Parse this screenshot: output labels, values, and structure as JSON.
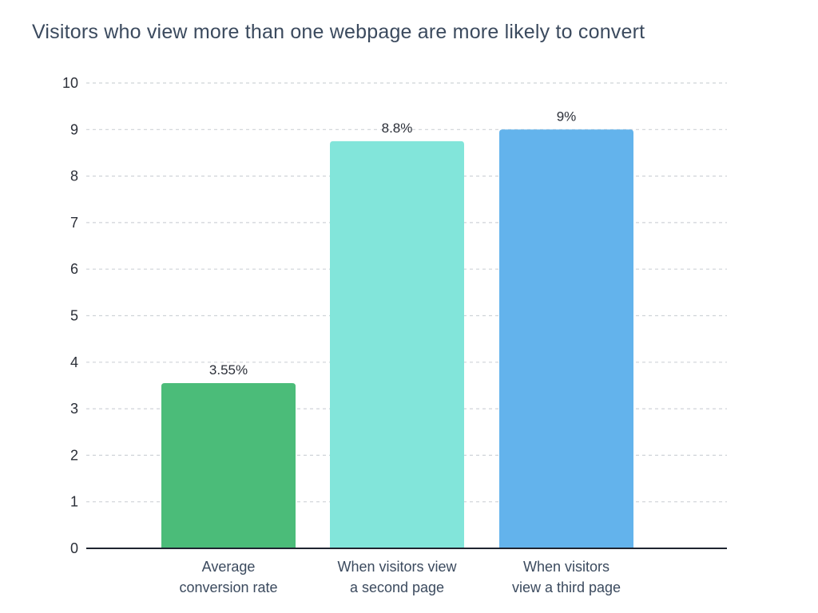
{
  "chart_data": {
    "type": "bar",
    "title": "Visitors who view more than one webpage are more likely to convert",
    "xlabel": "",
    "ylabel": "",
    "ylim": [
      0,
      10
    ],
    "yticks": [
      0,
      1,
      2,
      3,
      4,
      5,
      6,
      7,
      8,
      9,
      10
    ],
    "grid": true,
    "categories": [
      [
        "Average",
        "conversion rate"
      ],
      [
        "When visitors view",
        "a second page"
      ],
      [
        "When visitors",
        "view a third page"
      ]
    ],
    "values": [
      3.55,
      8.75,
      9.0
    ],
    "value_labels": [
      "3.55%",
      "8.8%",
      "9%"
    ],
    "colors": [
      "#4bbc79",
      "#82e5da",
      "#63b3ec"
    ]
  }
}
